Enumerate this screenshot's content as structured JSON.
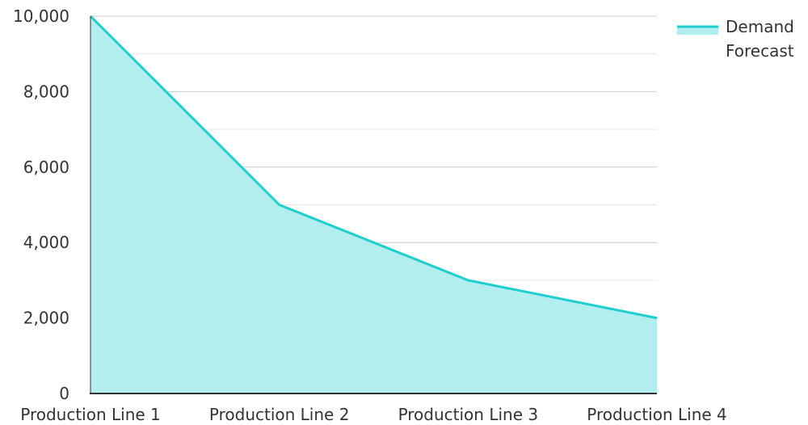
{
  "chart_data": {
    "type": "area",
    "categories": [
      "Production Line 1",
      "Production Line 2",
      "Production Line 3",
      "Production Line 4"
    ],
    "series": [
      {
        "name": "Demand Forecast",
        "values": [
          10000,
          5000,
          3000,
          2000
        ]
      }
    ],
    "ylim": [
      0,
      10000
    ],
    "yticks": [
      0,
      2000,
      4000,
      6000,
      8000,
      10000
    ],
    "ytick_labels": [
      "0",
      "2,000",
      "4,000",
      "6,000",
      "8,000",
      "10,000"
    ],
    "grid": true,
    "minor_grid": true,
    "legend_position": "top-right",
    "legend_lines": [
      "Demand",
      "Forecast"
    ],
    "line_color": "#1ecfcf",
    "fill_color": "#b3eeee",
    "grid_color": "#cccccc",
    "minor_grid_color": "#e6e6e6",
    "axis_color": "#333333"
  }
}
